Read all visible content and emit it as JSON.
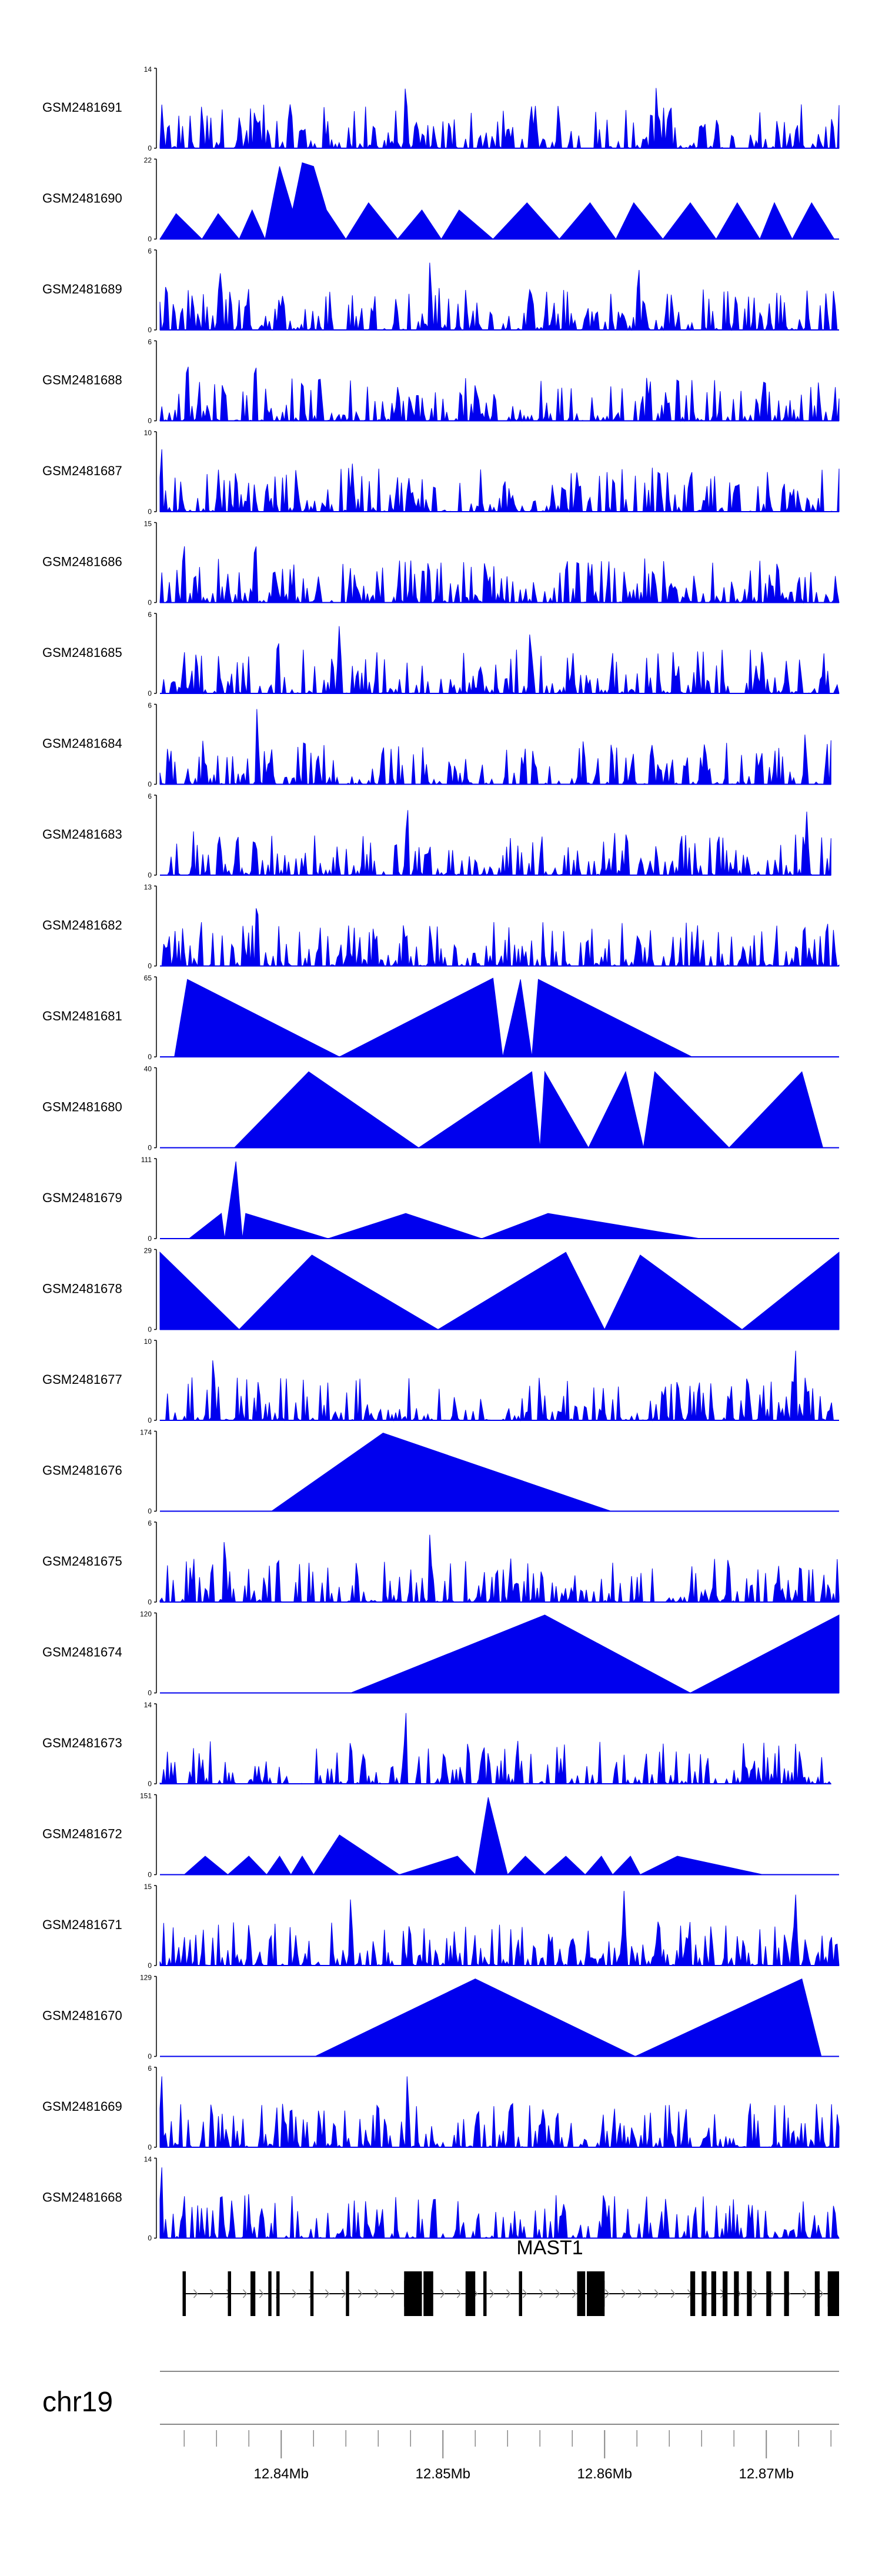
{
  "chart_data": {
    "type": "area",
    "chromosome": "chr19",
    "xlim": [
      12.8325,
      12.8745
    ],
    "x_ticks": [
      12.84,
      12.85,
      12.86,
      12.87
    ],
    "x_tick_labels": [
      "12.84Mb",
      "12.85Mb",
      "12.86Mb",
      "12.87Mb"
    ],
    "fill_color": "#0000ee",
    "gene": {
      "name": "MAST1",
      "start": 12.8339,
      "end": 12.8745,
      "strand": "+",
      "exons": [
        [
          12.8339,
          12.8341
        ],
        [
          12.8367,
          12.8369
        ],
        [
          12.8381,
          12.8384
        ],
        [
          12.8392,
          12.8394
        ],
        [
          12.8397,
          12.8399
        ],
        [
          12.8418,
          12.842
        ],
        [
          12.844,
          12.8442
        ],
        [
          12.8476,
          12.8487
        ],
        [
          12.8488,
          12.8494
        ],
        [
          12.8514,
          12.852
        ],
        [
          12.8525,
          12.8527
        ],
        [
          12.8547,
          12.8549
        ],
        [
          12.8583,
          12.8588
        ],
        [
          12.8589,
          12.86
        ],
        [
          12.8653,
          12.8656
        ],
        [
          12.866,
          12.8663
        ],
        [
          12.8666,
          12.8669
        ],
        [
          12.8673,
          12.8676
        ],
        [
          12.868,
          12.8683
        ],
        [
          12.8688,
          12.8691
        ],
        [
          12.87,
          12.8703
        ],
        [
          12.8711,
          12.8714
        ],
        [
          12.873,
          12.8733
        ],
        [
          12.8738,
          12.8745
        ]
      ],
      "thick_exons": [
        [
          12.8476,
          12.8487
        ],
        [
          12.8589,
          12.86
        ],
        [
          12.8738,
          12.8745
        ]
      ]
    },
    "tracks": [
      {
        "name": "GSM2481691",
        "ymax": 14,
        "pattern": "dense",
        "end": 12.8745,
        "peaks": [
          [
            12.8477,
            12.5
          ],
          [
            12.8632,
            11.5
          ],
          [
            12.8385,
            6.5
          ]
        ]
      },
      {
        "name": "GSM2481690",
        "ymax": 22,
        "pattern": "triangles",
        "points": [
          [
            12.8325,
            0
          ],
          [
            12.8335,
            7
          ],
          [
            12.8351,
            0
          ],
          [
            12.8361,
            7
          ],
          [
            12.8374,
            0
          ],
          [
            12.8382,
            8
          ],
          [
            12.839,
            0
          ],
          [
            12.8399,
            20
          ],
          [
            12.8407,
            8
          ],
          [
            12.8413,
            21
          ],
          [
            12.842,
            20
          ],
          [
            12.8428,
            8
          ],
          [
            12.844,
            0
          ],
          [
            12.8454,
            10
          ],
          [
            12.8472,
            0
          ],
          [
            12.8487,
            8
          ],
          [
            12.8499,
            0
          ],
          [
            12.851,
            8
          ],
          [
            12.8531,
            0
          ],
          [
            12.8552,
            10
          ],
          [
            12.8572,
            0
          ],
          [
            12.8591,
            10
          ],
          [
            12.8607,
            0
          ],
          [
            12.8618,
            10
          ],
          [
            12.8636,
            0
          ],
          [
            12.8653,
            10
          ],
          [
            12.8669,
            0
          ],
          [
            12.8682,
            10
          ],
          [
            12.8696,
            0
          ],
          [
            12.8705,
            10
          ],
          [
            12.8716,
            0
          ],
          [
            12.8728,
            10
          ],
          [
            12.8742,
            0
          ]
        ]
      },
      {
        "name": "GSM2481689",
        "ymax": 6,
        "pattern": "dense",
        "end": 12.8745,
        "peaks": [
          [
            12.8492,
            5.5
          ],
          [
            12.8621,
            5.4
          ],
          [
            12.8362,
            5.1
          ]
        ]
      },
      {
        "name": "GSM2481688",
        "ymax": 6,
        "pattern": "dense",
        "end": 12.8745,
        "peaks": [
          [
            12.8342,
            5.4
          ],
          [
            12.8384,
            5.3
          ]
        ]
      },
      {
        "name": "GSM2481687",
        "ymax": 10,
        "pattern": "dense",
        "end": 12.8745,
        "peaks": [
          [
            12.8326,
            8.5
          ],
          [
            12.8444,
            6.0
          ]
        ]
      },
      {
        "name": "GSM2481686",
        "ymax": 15,
        "pattern": "dense",
        "end": 12.8745,
        "peaks": [
          [
            12.834,
            11.5
          ],
          [
            12.8384,
            14.0
          ]
        ]
      },
      {
        "name": "GSM2481685",
        "ymax": 6,
        "pattern": "dense",
        "end": 12.8745,
        "peaks": [
          [
            12.8436,
            5.5
          ],
          [
            12.8554,
            5.3
          ],
          [
            12.8398,
            5.0
          ]
        ]
      },
      {
        "name": "GSM2481684",
        "ymax": 6,
        "pattern": "dense",
        "end": 12.874,
        "peaks": [
          [
            12.8385,
            5.8
          ],
          [
            12.8724,
            4.0
          ]
        ]
      },
      {
        "name": "GSM2481683",
        "ymax": 6,
        "pattern": "dense",
        "end": 12.874,
        "peaks": [
          [
            12.8478,
            5.8
          ],
          [
            12.8725,
            4.8
          ]
        ]
      },
      {
        "name": "GSM2481682",
        "ymax": 13,
        "pattern": "dense",
        "end": 12.8745,
        "peaks": [
          [
            12.8385,
            12.5
          ],
          [
            12.8477,
            5.5
          ]
        ]
      },
      {
        "name": "GSM2481681",
        "ymax": 65,
        "pattern": "triangles",
        "points": [
          [
            12.8334,
            0
          ],
          [
            12.8342,
            63
          ],
          [
            12.8436,
            0
          ],
          [
            12.8531,
            64
          ],
          [
            12.8537,
            0
          ],
          [
            12.8548,
            63
          ],
          [
            12.8555,
            0
          ],
          [
            12.8559,
            63
          ],
          [
            12.8654,
            0
          ]
        ]
      },
      {
        "name": "GSM2481680",
        "ymax": 40,
        "pattern": "triangles",
        "points": [
          [
            12.8371,
            0
          ],
          [
            12.8417,
            38
          ],
          [
            12.8485,
            0
          ],
          [
            12.8555,
            38
          ],
          [
            12.856,
            0
          ],
          [
            12.8563,
            38
          ],
          [
            12.859,
            0
          ],
          [
            12.8613,
            38
          ],
          [
            12.8624,
            0
          ],
          [
            12.8631,
            38
          ],
          [
            12.8677,
            0
          ],
          [
            12.8722,
            38
          ],
          [
            12.8735,
            0
          ]
        ]
      },
      {
        "name": "GSM2481679",
        "ymax": 111,
        "pattern": "triangles",
        "points": [
          [
            12.8343,
            0
          ],
          [
            12.8363,
            35
          ],
          [
            12.8365,
            0
          ],
          [
            12.8372,
            107
          ],
          [
            12.8376,
            0
          ],
          [
            12.8378,
            35
          ],
          [
            12.8429,
            0
          ],
          [
            12.8477,
            35
          ],
          [
            12.8524,
            0
          ],
          [
            12.8565,
            35
          ],
          [
            12.8659,
            0
          ]
        ]
      },
      {
        "name": "GSM2481678",
        "ymax": 29,
        "pattern": "triangles",
        "points": [
          [
            12.8325,
            28
          ],
          [
            12.8374,
            0
          ],
          [
            12.8419,
            27
          ],
          [
            12.8497,
            0
          ],
          [
            12.8576,
            28
          ],
          [
            12.86,
            0
          ],
          [
            12.8622,
            27
          ],
          [
            12.8685,
            0
          ],
          [
            12.8745,
            28
          ]
        ]
      },
      {
        "name": "GSM2481677",
        "ymax": 10,
        "pattern": "dense",
        "end": 12.8745,
        "peaks": [
          [
            12.8358,
            9.0
          ],
          [
            12.8718,
            9.5
          ]
        ]
      },
      {
        "name": "GSM2481676",
        "ymax": 174,
        "pattern": "triangles",
        "points": [
          [
            12.8394,
            0
          ],
          [
            12.8463,
            170
          ],
          [
            12.8604,
            0
          ]
        ]
      },
      {
        "name": "GSM2481675",
        "ymax": 6,
        "pattern": "dense",
        "end": 12.8745,
        "peaks": [
          [
            12.8365,
            5.4
          ],
          [
            12.8492,
            5.5
          ]
        ]
      },
      {
        "name": "GSM2481674",
        "ymax": 120,
        "pattern": "triangles",
        "points": [
          [
            12.8443,
            0
          ],
          [
            12.8563,
            117
          ],
          [
            12.8653,
            0
          ],
          [
            12.8745,
            117
          ]
        ]
      },
      {
        "name": "GSM2481673",
        "ymax": 14,
        "pattern": "dense",
        "end": 12.874,
        "peaks": [
          [
            12.8477,
            13.5
          ],
          [
            12.8443,
            9.0
          ]
        ]
      },
      {
        "name": "GSM2481672",
        "ymax": 151,
        "pattern": "triangles",
        "points": [
          [
            12.834,
            0
          ],
          [
            12.8353,
            35
          ],
          [
            12.8367,
            0
          ],
          [
            12.838,
            35
          ],
          [
            12.8391,
            0
          ],
          [
            12.8399,
            35
          ],
          [
            12.8406,
            0
          ],
          [
            12.8413,
            35
          ],
          [
            12.842,
            0
          ],
          [
            12.8436,
            75
          ],
          [
            12.8473,
            0
          ],
          [
            12.8509,
            35
          ],
          [
            12.852,
            0
          ],
          [
            12.8528,
            146
          ],
          [
            12.854,
            0
          ],
          [
            12.8551,
            35
          ],
          [
            12.8563,
            0
          ],
          [
            12.8576,
            35
          ],
          [
            12.8588,
            0
          ],
          [
            12.8598,
            35
          ],
          [
            12.8605,
            0
          ],
          [
            12.8616,
            35
          ],
          [
            12.8622,
            0
          ],
          [
            12.8645,
            35
          ],
          [
            12.8698,
            0
          ]
        ]
      },
      {
        "name": "GSM2481671",
        "ymax": 15,
        "pattern": "dense",
        "end": 12.8745,
        "peaks": [
          [
            12.8443,
            13.5
          ],
          [
            12.8612,
            14.0
          ],
          [
            12.8718,
            14.5
          ]
        ]
      },
      {
        "name": "GSM2481670",
        "ymax": 129,
        "pattern": "triangles",
        "points": [
          [
            12.8421,
            0
          ],
          [
            12.852,
            125
          ],
          [
            12.8619,
            0
          ],
          [
            12.8722,
            125
          ],
          [
            12.8734,
            0
          ]
        ]
      },
      {
        "name": "GSM2481669",
        "ymax": 6,
        "pattern": "dense",
        "end": 12.8745,
        "peaks": [
          [
            12.8326,
            5.8
          ],
          [
            12.8478,
            5.8
          ]
        ]
      },
      {
        "name": "GSM2481668",
        "ymax": 14,
        "pattern": "dense",
        "end": 12.8745,
        "peaks": [
          [
            12.8326,
            13.5
          ],
          [
            12.834,
            8.0
          ]
        ]
      }
    ]
  }
}
